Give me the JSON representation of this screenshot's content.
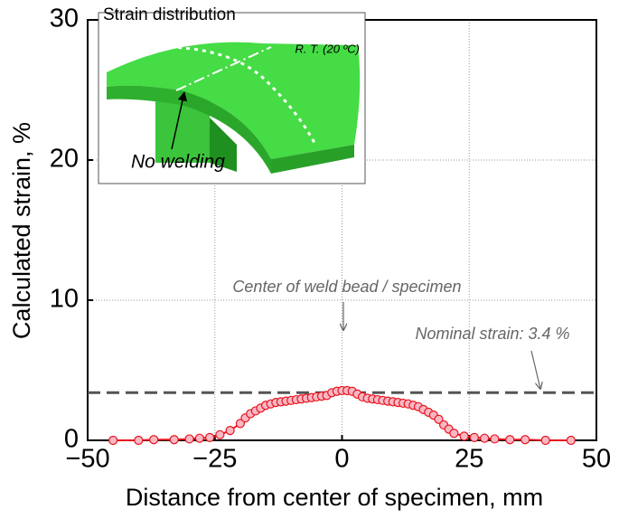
{
  "chart_data": {
    "type": "line",
    "xlabel": "Distance from center of specimen, mm",
    "ylabel": "Calculated strain, %",
    "xlim": [
      -50,
      50
    ],
    "ylim": [
      0,
      30
    ],
    "xticks": [
      {
        "value": -50,
        "label": "−50"
      },
      {
        "value": -25,
        "label": "−25"
      },
      0,
      25,
      50
    ],
    "yticks": [
      0,
      10,
      20,
      30
    ],
    "grid": true,
    "series": [
      {
        "color": "#e8141e",
        "x": [
          -45,
          -40,
          -37,
          -33,
          -30,
          -28,
          -26,
          -24,
          -22,
          -20,
          -19,
          -18,
          -17,
          -16,
          -15,
          -14,
          -13,
          -12,
          -11,
          -10,
          -9,
          -8,
          -7,
          -6,
          -5,
          -4,
          -3,
          -2,
          -1,
          0,
          1,
          2,
          3,
          4,
          5,
          6,
          7,
          8,
          9,
          10,
          11,
          12,
          13,
          14,
          15,
          16,
          17,
          18,
          19,
          20,
          21,
          22,
          24,
          26,
          28,
          30,
          33,
          36,
          40,
          45
        ],
        "values": [
          0,
          0,
          0.05,
          0.05,
          0.1,
          0.15,
          0.2,
          0.4,
          0.7,
          1.2,
          1.6,
          1.9,
          2.1,
          2.3,
          2.5,
          2.6,
          2.7,
          2.75,
          2.8,
          2.85,
          2.9,
          2.95,
          3.0,
          3.05,
          3.1,
          3.15,
          3.2,
          3.4,
          3.5,
          3.55,
          3.55,
          3.5,
          3.3,
          3.1,
          3.0,
          2.95,
          2.9,
          2.85,
          2.8,
          2.75,
          2.7,
          2.65,
          2.6,
          2.5,
          2.4,
          2.2,
          2.0,
          1.8,
          1.5,
          1.1,
          0.8,
          0.5,
          0.3,
          0.2,
          0.15,
          0.1,
          0.05,
          0.05,
          0,
          0
        ]
      }
    ],
    "nominal_strain": 3.4,
    "annotations": {
      "center": "Center of weld bead / specimen",
      "nominal": "Nominal strain: 3.4 %"
    },
    "inset": {
      "title": "Strain distribution",
      "temperature": "R. T. (20 ºC)",
      "note": "No welding"
    }
  }
}
